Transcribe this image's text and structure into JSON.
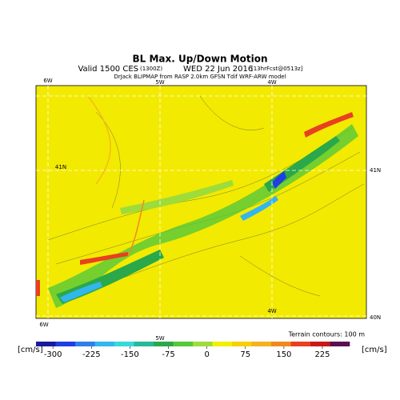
{
  "header": {
    "title": "BL Max. Up/Down Motion",
    "valid": "Valid 1500 CES",
    "utc": "(1300Z)",
    "date": "WED 22 Jun 2016",
    "forecast": "[13hrFcst@0513z]",
    "source": "DrJack BLIPMAP from RASP 2.0km GFSN Tdif WRF-ARW model"
  },
  "map": {
    "top_labels": [
      "6W",
      "5W",
      "4W"
    ],
    "bottom_labels": [
      "6W",
      "5W"
    ],
    "inner_labels": [
      "41N",
      "4W"
    ],
    "right_labels": [
      "41N",
      "40N"
    ],
    "terrain_note": "Terrain contours: 100 m"
  },
  "colorbar": {
    "unit": "[cm/s]",
    "lim": [
      -333,
      278
    ],
    "ticks": [
      -300,
      -225,
      -150,
      -75,
      0,
      75,
      150,
      225
    ],
    "colors": [
      "#1a1a9e",
      "#1f3fe0",
      "#2f7fe8",
      "#33b5ee",
      "#37d9d9",
      "#27b89a",
      "#2aa84a",
      "#55c83a",
      "#9ddc3a",
      "#f0f000",
      "#f6d000",
      "#f6b020",
      "#f08a20",
      "#e84020",
      "#c81818",
      "#5a1050"
    ]
  }
}
